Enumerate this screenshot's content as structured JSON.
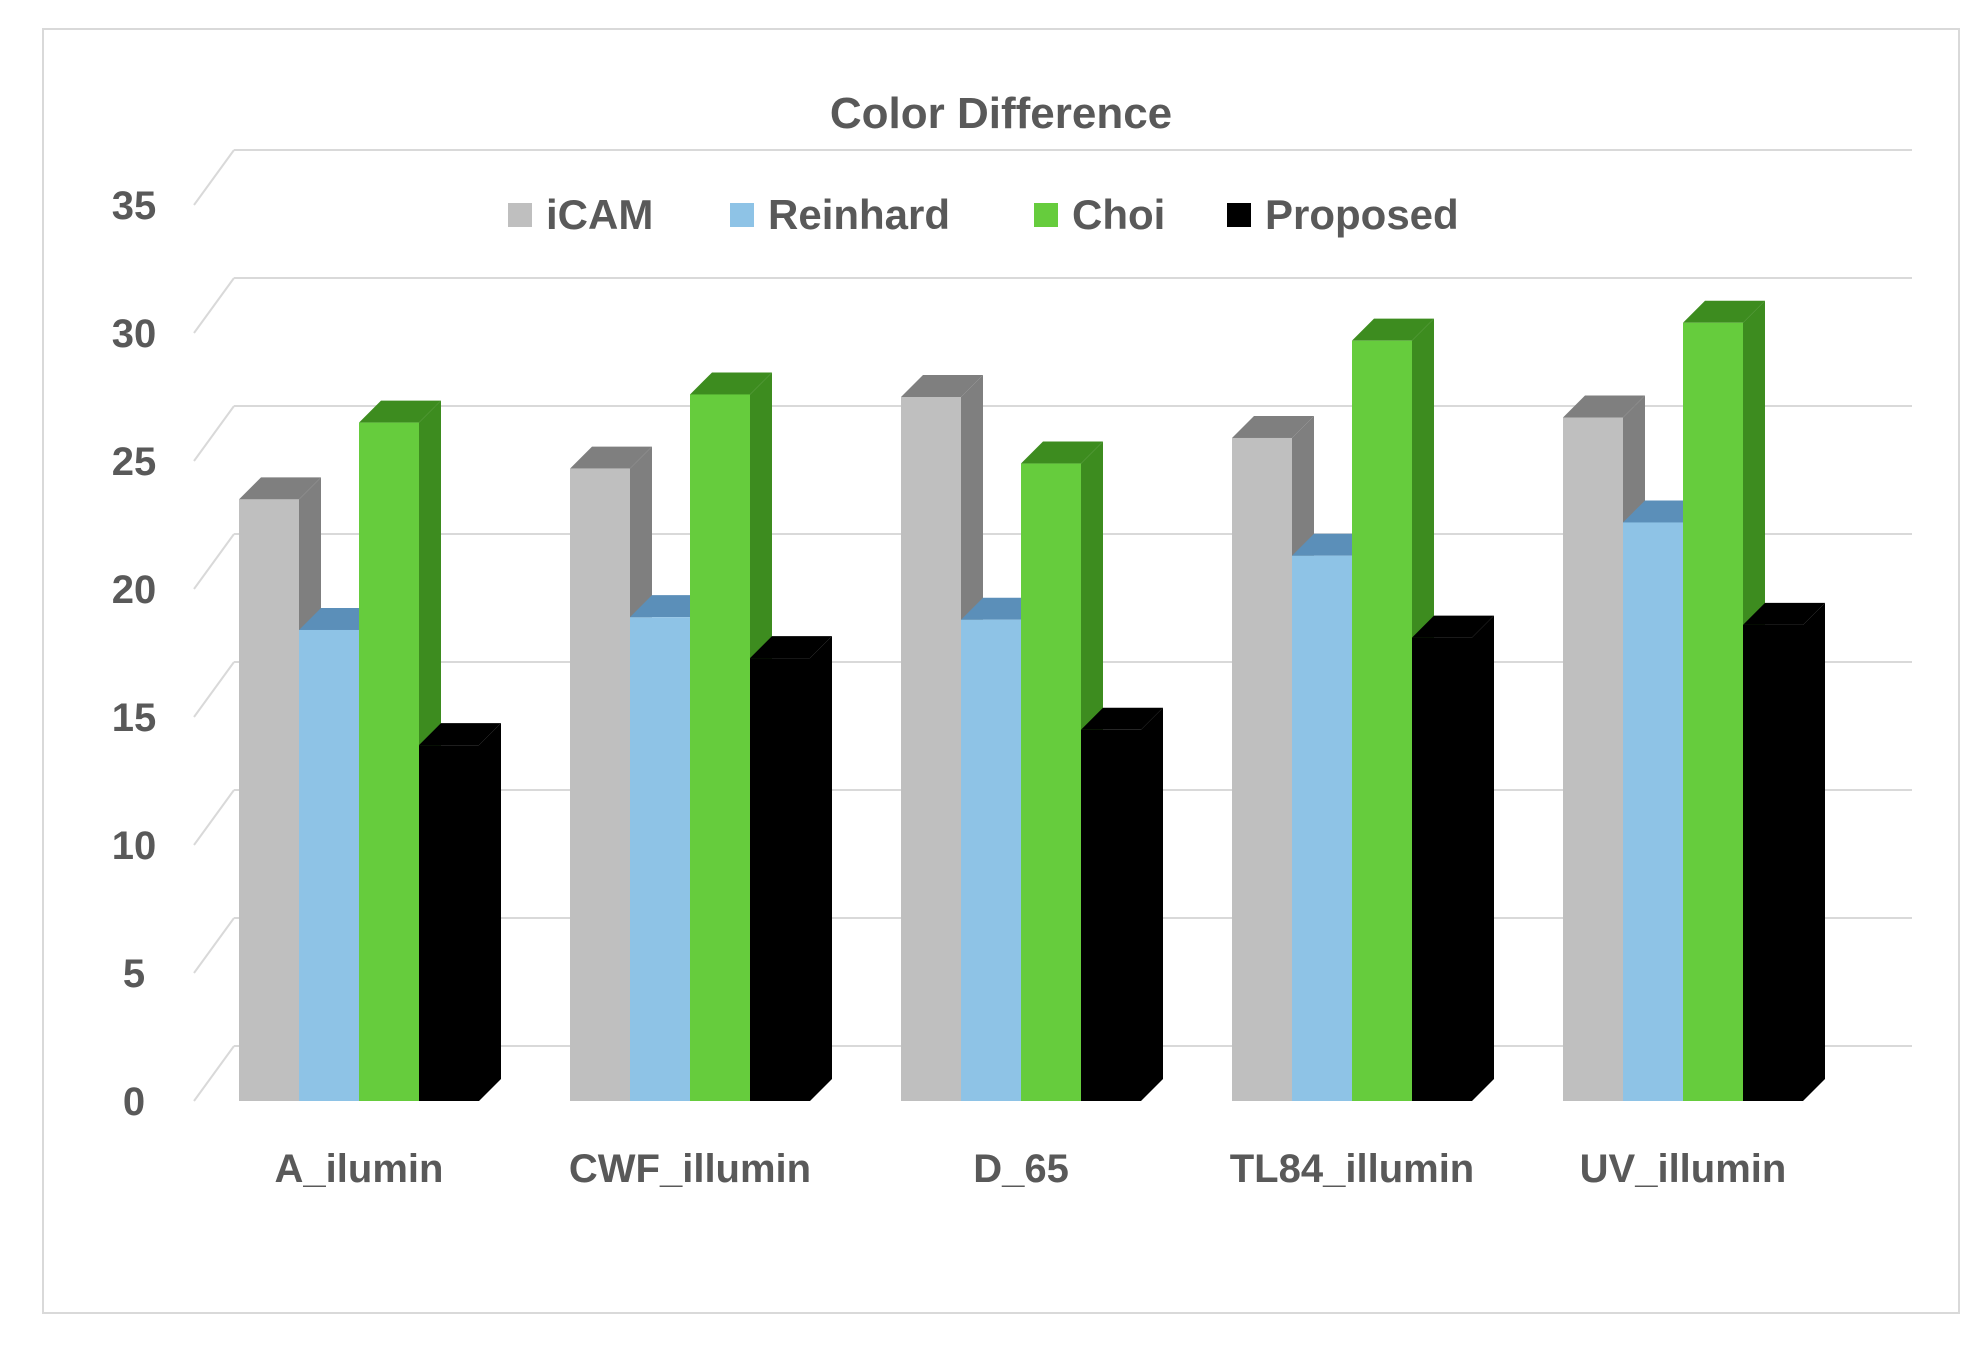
{
  "chart_data": {
    "type": "bar",
    "title": "Color Difference",
    "xlabel": "",
    "ylabel": "",
    "ylim": [
      0,
      35
    ],
    "yticks": [
      0,
      5,
      10,
      15,
      20,
      25,
      30,
      35
    ],
    "grid": true,
    "legend_position": "top",
    "categories": [
      "A_ilumin",
      "CWF_illumin",
      "D_65",
      "TL84_illumin",
      "UV_illumin"
    ],
    "series": [
      {
        "name": "iCAM",
        "color": "#bfbfbf",
        "side_color": "#7f7f7f",
        "values": [
          23.5,
          24.7,
          27.5,
          25.9,
          26.7
        ]
      },
      {
        "name": "Reinhard",
        "color": "#8ec3e6",
        "side_color": "#5b8fb9",
        "values": [
          18.4,
          18.9,
          18.8,
          21.3,
          22.6
        ]
      },
      {
        "name": "Choi",
        "color": "#66cc3d",
        "side_color": "#3d8c1f",
        "values": [
          26.5,
          27.6,
          24.9,
          29.7,
          30.4
        ]
      },
      {
        "name": "Proposed",
        "color": "#000000",
        "side_color": "#000000",
        "values": [
          13.9,
          17.3,
          14.5,
          18.1,
          18.6
        ]
      }
    ]
  }
}
